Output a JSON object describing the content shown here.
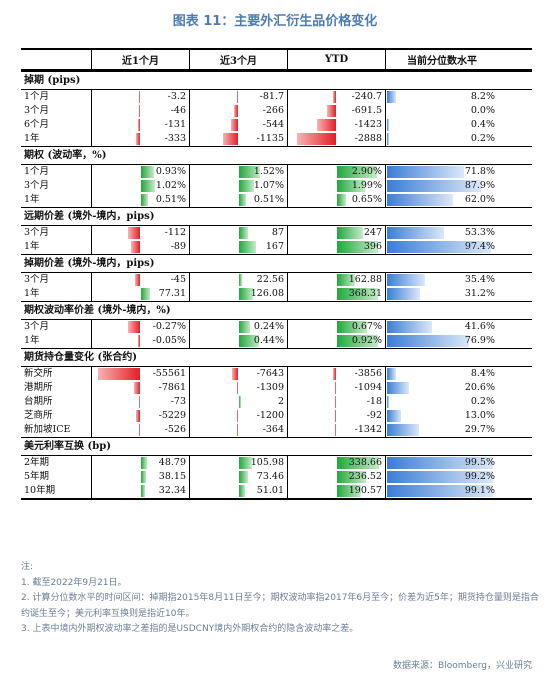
{
  "title": "图表 11：主要外汇衍生品价格变化",
  "headers": [
    "",
    "近1个月",
    "近3个月",
    "YTD",
    "当前分位数水平"
  ],
  "colors": {
    "negative": "#e31e25",
    "positive": "#21a83a",
    "percentile": "#3a7dd5",
    "title": "#4d7bb3"
  },
  "sections": [
    {
      "title": "掉期 (pips)",
      "scale": [
        3500,
        3500,
        3500
      ],
      "rows": [
        {
          "label": "1个月",
          "cols": [
            "-3.2",
            "-81.7",
            "-240.7"
          ],
          "nums": [
            -3.2,
            -81.7,
            -240.7
          ],
          "pct": "8.2%",
          "pctv": 8.2
        },
        {
          "label": "3个月",
          "cols": [
            "-46",
            "-266",
            "-691.5"
          ],
          "nums": [
            -46,
            -266,
            -691.5
          ],
          "pct": "0.0%",
          "pctv": 0.0
        },
        {
          "label": "6个月",
          "cols": [
            "-131",
            "-544",
            "-1423"
          ],
          "nums": [
            -131,
            -544,
            -1423
          ],
          "pct": "0.4%",
          "pctv": 0.4
        },
        {
          "label": "1年",
          "cols": [
            "-333",
            "-1135",
            "-2888"
          ],
          "nums": [
            -333,
            -1135,
            -2888
          ],
          "pct": "0.2%",
          "pctv": 0.2
        }
      ]
    },
    {
      "title": "期权 (波动率，%)",
      "scale": [
        3.4,
        3.4,
        3.4
      ],
      "rows": [
        {
          "label": "1个月",
          "cols": [
            "0.93%",
            "1.52%",
            "2.90%"
          ],
          "nums": [
            0.93,
            1.52,
            2.9
          ],
          "pct": "71.8%",
          "pctv": 71.8
        },
        {
          "label": "3个月",
          "cols": [
            "1.02%",
            "1.07%",
            "1.99%"
          ],
          "nums": [
            1.02,
            1.07,
            1.99
          ],
          "pct": "87.9%",
          "pctv": 87.9
        },
        {
          "label": "1年",
          "cols": [
            "0.51%",
            "0.51%",
            "0.65%"
          ],
          "nums": [
            0.51,
            0.51,
            0.65
          ],
          "pct": "62.0%",
          "pctv": 62.0
        }
      ]
    },
    {
      "title": "远期价差 (境外-境内，pips)",
      "scale": [
        450,
        450,
        450
      ],
      "rows": [
        {
          "label": "3个月",
          "cols": [
            "-112",
            "87",
            "247"
          ],
          "nums": [
            -112,
            87,
            247
          ],
          "pct": "53.3%",
          "pctv": 53.3
        },
        {
          "label": "1年",
          "cols": [
            "-89",
            "167",
            "396"
          ],
          "nums": [
            -89,
            167,
            396
          ],
          "pct": "97.4%",
          "pctv": 97.4
        }
      ]
    },
    {
      "title": "掉期价差 (境外-境内，pips)",
      "scale": [
        420,
        420,
        420
      ],
      "rows": [
        {
          "label": "3个月",
          "cols": [
            "-45",
            "22.56",
            "162.88"
          ],
          "nums": [
            -45,
            22.56,
            162.88
          ],
          "pct": "35.4%",
          "pctv": 35.4
        },
        {
          "label": "1年",
          "cols": [
            "77.31",
            "126.08",
            "368.31"
          ],
          "nums": [
            77.31,
            126.08,
            368.31
          ],
          "pct": "31.2%",
          "pctv": 31.2
        }
      ]
    },
    {
      "title": "期权波动率价差 (境外-境内，%)",
      "scale": [
        1.05,
        1.05,
        1.05
      ],
      "rows": [
        {
          "label": "3个月",
          "cols": [
            "-0.27%",
            "0.24%",
            "0.67%"
          ],
          "nums": [
            -0.27,
            0.24,
            0.67
          ],
          "pct": "41.6%",
          "pctv": 41.6
        },
        {
          "label": "1年",
          "cols": [
            "-0.05%",
            "0.44%",
            "0.92%"
          ],
          "nums": [
            -0.05,
            0.44,
            0.92
          ],
          "pct": "76.9%",
          "pctv": 76.9
        }
      ]
    },
    {
      "title": "期货持仓量变化 (张合约)",
      "scale": [
        62000,
        62000,
        62000
      ],
      "rows": [
        {
          "label": "新交所",
          "cols": [
            "-55561",
            "-7643",
            "-3856"
          ],
          "nums": [
            -55561,
            -7643,
            -3856
          ],
          "pct": "8.4%",
          "pctv": 8.4
        },
        {
          "label": "港期所",
          "cols": [
            "-7861",
            "-1309",
            "-1094"
          ],
          "nums": [
            -7861,
            -1309,
            -1094
          ],
          "pct": "20.6%",
          "pctv": 20.6
        },
        {
          "label": "台期所",
          "cols": [
            "-73",
            "2",
            "-18"
          ],
          "nums": [
            -73,
            2,
            -18
          ],
          "pct": "0.2%",
          "pctv": 0.2
        },
        {
          "label": "芝商所",
          "cols": [
            "-5229",
            "-1200",
            "-92"
          ],
          "nums": [
            -5229,
            -1200,
            -92
          ],
          "pct": "13.0%",
          "pctv": 13.0
        },
        {
          "label": "新加坡ICE",
          "cols": [
            "-526",
            "-364",
            "-1342"
          ],
          "nums": [
            -526,
            -364,
            -1342
          ],
          "pct": "29.7%",
          "pctv": 29.7
        }
      ]
    },
    {
      "title": "美元利率互换 (bp)",
      "scale": [
        380,
        380,
        380
      ],
      "rows": [
        {
          "label": "2年期",
          "cols": [
            "48.79",
            "105.98",
            "338.66"
          ],
          "nums": [
            48.79,
            105.98,
            338.66
          ],
          "pct": "99.5%",
          "pctv": 99.5
        },
        {
          "label": "5年期",
          "cols": [
            "38.15",
            "73.46",
            "236.52"
          ],
          "nums": [
            38.15,
            73.46,
            236.52
          ],
          "pct": "99.2%",
          "pctv": 99.2
        },
        {
          "label": "10年期",
          "cols": [
            "32.34",
            "51.01",
            "190.57"
          ],
          "nums": [
            32.34,
            51.01,
            190.57
          ],
          "pct": "99.1%",
          "pctv": 99.1
        }
      ]
    }
  ],
  "notes": {
    "head": "注:",
    "items": [
      "1. 截至2022年9月21日。",
      "2. 计算分位数水平的时间区间：掉期指2015年8月11日至今；期权波动率指2017年6月至今；价差为近5年；期货持仓量则是指合约诞生至今；美元利率互换则是指近10年。",
      "3. 上表中境内外期权波动率之差指的是USDCNY境内外期权合约的隐含波动率之差。"
    ]
  },
  "source": "数据来源：Bloomberg，兴业研究"
}
